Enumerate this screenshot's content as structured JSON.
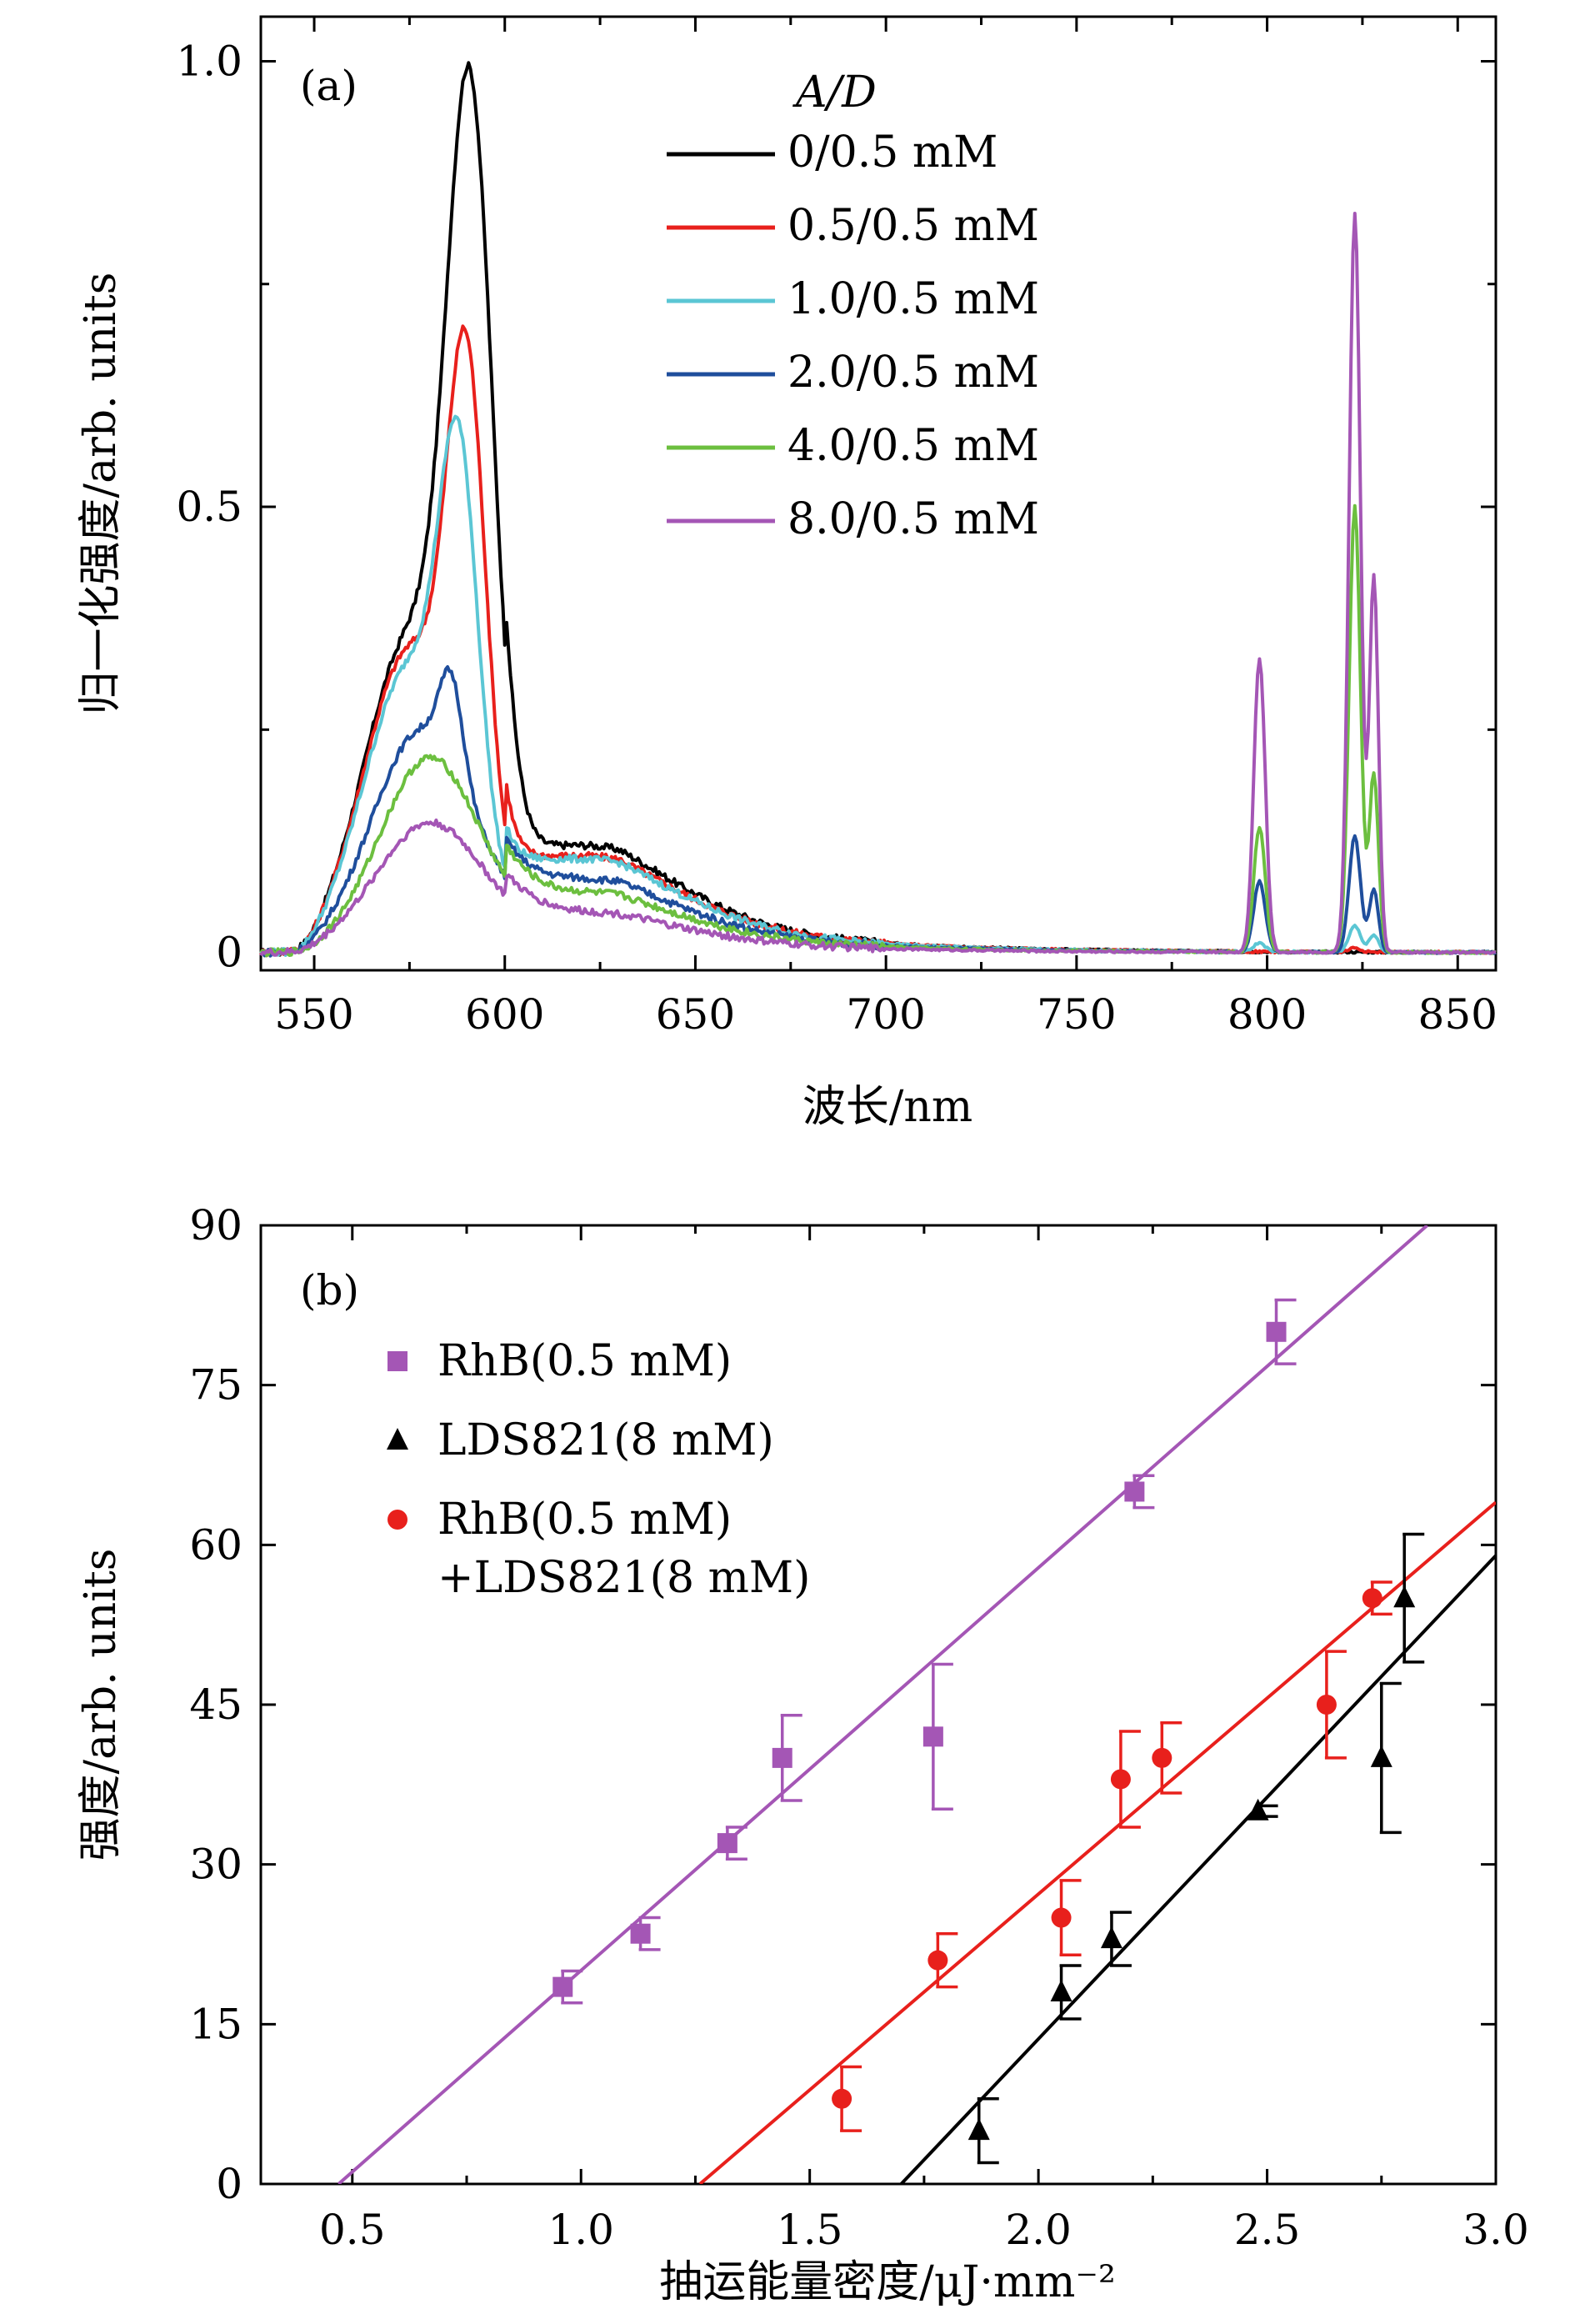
{
  "chart_data": [
    {
      "type": "line",
      "panel_label": "(a)",
      "xlabel": "波长/nm",
      "ylabel": "归一化强度/arb. units",
      "xlim": [
        536,
        860
      ],
      "ylim": [
        -0.02,
        1.05
      ],
      "x_ticks": [
        550,
        600,
        650,
        700,
        750,
        800,
        850
      ],
      "y_ticks": [
        0,
        0.5,
        1.0
      ],
      "y_tick_labels": [
        "0",
        "0.5",
        "1.0"
      ],
      "legend_title": "A/D",
      "legend_position": "top-right",
      "grid": false,
      "series": [
        {
          "name": "0/0.5 mM",
          "color": "#000000",
          "peaks": [
            {
              "center": 575,
              "height": 0.34,
              "width": 12
            },
            {
              "center": 591,
              "height": 0.82,
              "width": 6
            },
            {
              "center": 620,
              "height": 0.06,
              "width": 25
            }
          ],
          "late": []
        },
        {
          "name": "0.5/0.5 mM",
          "color": "#e8201c",
          "peaks": [
            {
              "center": 575,
              "height": 0.33,
              "width": 12
            },
            {
              "center": 590,
              "height": 0.52,
              "width": 5
            },
            {
              "center": 620,
              "height": 0.05,
              "width": 25
            }
          ],
          "late": [
            {
              "center": 823,
              "height": 0.005,
              "width": 1.5
            }
          ]
        },
        {
          "name": "1.0/0.5 mM",
          "color": "#5bc6d4",
          "peaks": [
            {
              "center": 575,
              "height": 0.31,
              "width": 12
            },
            {
              "center": 588,
              "height": 0.4,
              "width": 5
            },
            {
              "center": 620,
              "height": 0.05,
              "width": 25
            }
          ],
          "late": [
            {
              "center": 798,
              "height": 0.01,
              "width": 1.5
            },
            {
              "center": 823,
              "height": 0.03,
              "width": 1.5
            },
            {
              "center": 828,
              "height": 0.02,
              "width": 1.2
            }
          ]
        },
        {
          "name": "2.0/0.5 mM",
          "color": "#1f4e9c",
          "peaks": [
            {
              "center": 578,
              "height": 0.24,
              "width": 13
            },
            {
              "center": 586,
              "height": 0.1,
              "width": 3
            },
            {
              "center": 620,
              "height": 0.04,
              "width": 25
            }
          ],
          "late": [
            {
              "center": 798,
              "height": 0.08,
              "width": 1.5
            },
            {
              "center": 823,
              "height": 0.13,
              "width": 1.5
            },
            {
              "center": 828,
              "height": 0.07,
              "width": 1.2
            }
          ]
        },
        {
          "name": "4.0/0.5 mM",
          "color": "#6cbf3f",
          "peaks": [
            {
              "center": 580,
              "height": 0.21,
              "width": 13
            },
            {
              "center": 620,
              "height": 0.03,
              "width": 25
            }
          ],
          "late": [
            {
              "center": 798,
              "height": 0.14,
              "width": 1.5
            },
            {
              "center": 823,
              "height": 0.5,
              "width": 1.5
            },
            {
              "center": 828,
              "height": 0.2,
              "width": 1.2
            }
          ]
        },
        {
          "name": "8.0/0.5 mM",
          "color": "#a456b5",
          "peaks": [
            {
              "center": 580,
              "height": 0.14,
              "width": 14
            },
            {
              "center": 620,
              "height": 0.02,
              "width": 25
            }
          ],
          "late": [
            {
              "center": 798,
              "height": 0.33,
              "width": 1.5
            },
            {
              "center": 823,
              "height": 0.83,
              "width": 1.5
            },
            {
              "center": 828,
              "height": 0.42,
              "width": 1.2
            }
          ]
        }
      ]
    },
    {
      "type": "scatter",
      "panel_label": "(b)",
      "xlabel": "抽运能量密度/μJ·mm⁻²",
      "ylabel": "强度/arb. units",
      "xlim": [
        0.3,
        3.0
      ],
      "ylim": [
        0,
        90
      ],
      "x_ticks": [
        0.5,
        1.0,
        1.5,
        2.0,
        2.5,
        3.0
      ],
      "x_tick_labels": [
        "0.5",
        "1.0",
        "1.5",
        "2.0",
        "2.5",
        "3.0"
      ],
      "y_ticks": [
        0,
        15,
        30,
        45,
        60,
        75,
        90
      ],
      "legend_position": "top-left",
      "grid": false,
      "series": [
        {
          "name": "RhB(0.5 mM)",
          "marker": "square",
          "color": "#a456b5",
          "points": [
            {
              "x": 0.96,
              "y": 18.5,
              "err": 1.5
            },
            {
              "x": 1.13,
              "y": 23.5,
              "err": 1.5
            },
            {
              "x": 1.32,
              "y": 32,
              "err": 1.5
            },
            {
              "x": 1.44,
              "y": 40,
              "err": 4
            },
            {
              "x": 1.77,
              "y": 42,
              "err": 6.8
            },
            {
              "x": 2.21,
              "y": 65,
              "err": 1.5
            },
            {
              "x": 2.52,
              "y": 80,
              "err": 3
            }
          ],
          "fit": [
            [
              0.47,
              0
            ],
            [
              2.85,
              90
            ]
          ]
        },
        {
          "name": "LDS821(8 mM)",
          "marker": "triangle",
          "color": "#000000",
          "points": [
            {
              "x": 1.87,
              "y": 5,
              "err": 3
            },
            {
              "x": 2.05,
              "y": 18,
              "err": 2.5
            },
            {
              "x": 2.16,
              "y": 23,
              "err": 2.5
            },
            {
              "x": 2.48,
              "y": 35,
              "err": 0.5
            },
            {
              "x": 2.75,
              "y": 40,
              "err": 7
            },
            {
              "x": 2.8,
              "y": 55,
              "err": 6
            }
          ],
          "fit": [
            [
              1.7,
              0
            ],
            [
              3.0,
              59
            ]
          ]
        },
        {
          "name": "RhB(0.5 mM)",
          "name_line2": "+LDS821(8 mM)",
          "marker": "circle",
          "color": "#e8201c",
          "points": [
            {
              "x": 1.57,
              "y": 8,
              "err": 3
            },
            {
              "x": 1.78,
              "y": 21,
              "err": 2.5
            },
            {
              "x": 2.05,
              "y": 25,
              "err": 3.5
            },
            {
              "x": 2.18,
              "y": 38,
              "err": 4.5
            },
            {
              "x": 2.27,
              "y": 40,
              "err": 3.3
            },
            {
              "x": 2.63,
              "y": 45,
              "err": 5
            },
            {
              "x": 2.73,
              "y": 55,
              "err": 1.5
            }
          ],
          "fit": [
            [
              1.26,
              0
            ],
            [
              3.0,
              64
            ]
          ]
        }
      ]
    }
  ]
}
